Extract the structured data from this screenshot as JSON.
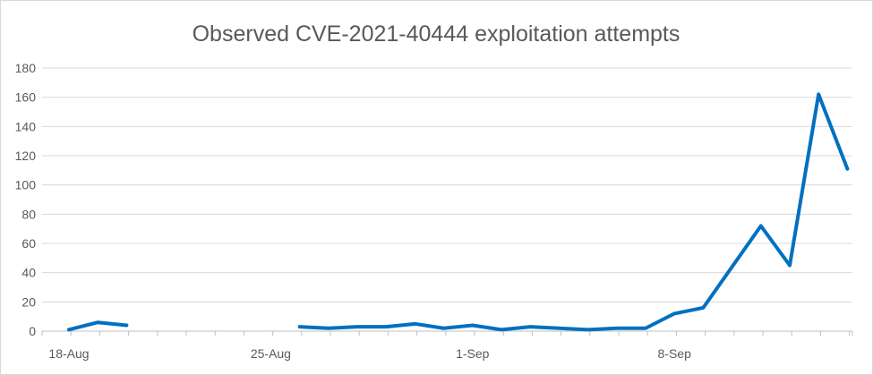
{
  "chart_data": {
    "type": "line",
    "title": "Observed CVE-2021-40444 exploitation attempts",
    "xlabel": "",
    "ylabel": "",
    "ylim": [
      0,
      180
    ],
    "yticks": [
      "0",
      "20",
      "40",
      "60",
      "80",
      "100",
      "120",
      "140",
      "160",
      "180"
    ],
    "xtick_labels": [
      "18-Aug",
      "25-Aug",
      "1-Sep",
      "8-Sep"
    ],
    "x_start": "18-Aug",
    "x_end": "14-Sep",
    "grid": true,
    "legend": "none",
    "color": "#0070C0",
    "x": [
      "18-Aug",
      "19-Aug",
      "20-Aug",
      "21-Aug",
      "22-Aug",
      "23-Aug",
      "24-Aug",
      "25-Aug",
      "26-Aug",
      "27-Aug",
      "28-Aug",
      "29-Aug",
      "30-Aug",
      "31-Aug",
      "1-Sep",
      "2-Sep",
      "3-Sep",
      "4-Sep",
      "5-Sep",
      "6-Sep",
      "7-Sep",
      "8-Sep",
      "9-Sep",
      "10-Sep",
      "11-Sep",
      "12-Sep",
      "13-Sep",
      "14-Sep"
    ],
    "values": [
      1,
      6,
      4,
      null,
      null,
      null,
      null,
      null,
      3,
      2,
      3,
      3,
      5,
      2,
      4,
      1,
      3,
      2,
      1,
      2,
      2,
      12,
      16,
      44,
      72,
      45,
      162,
      111
    ]
  }
}
